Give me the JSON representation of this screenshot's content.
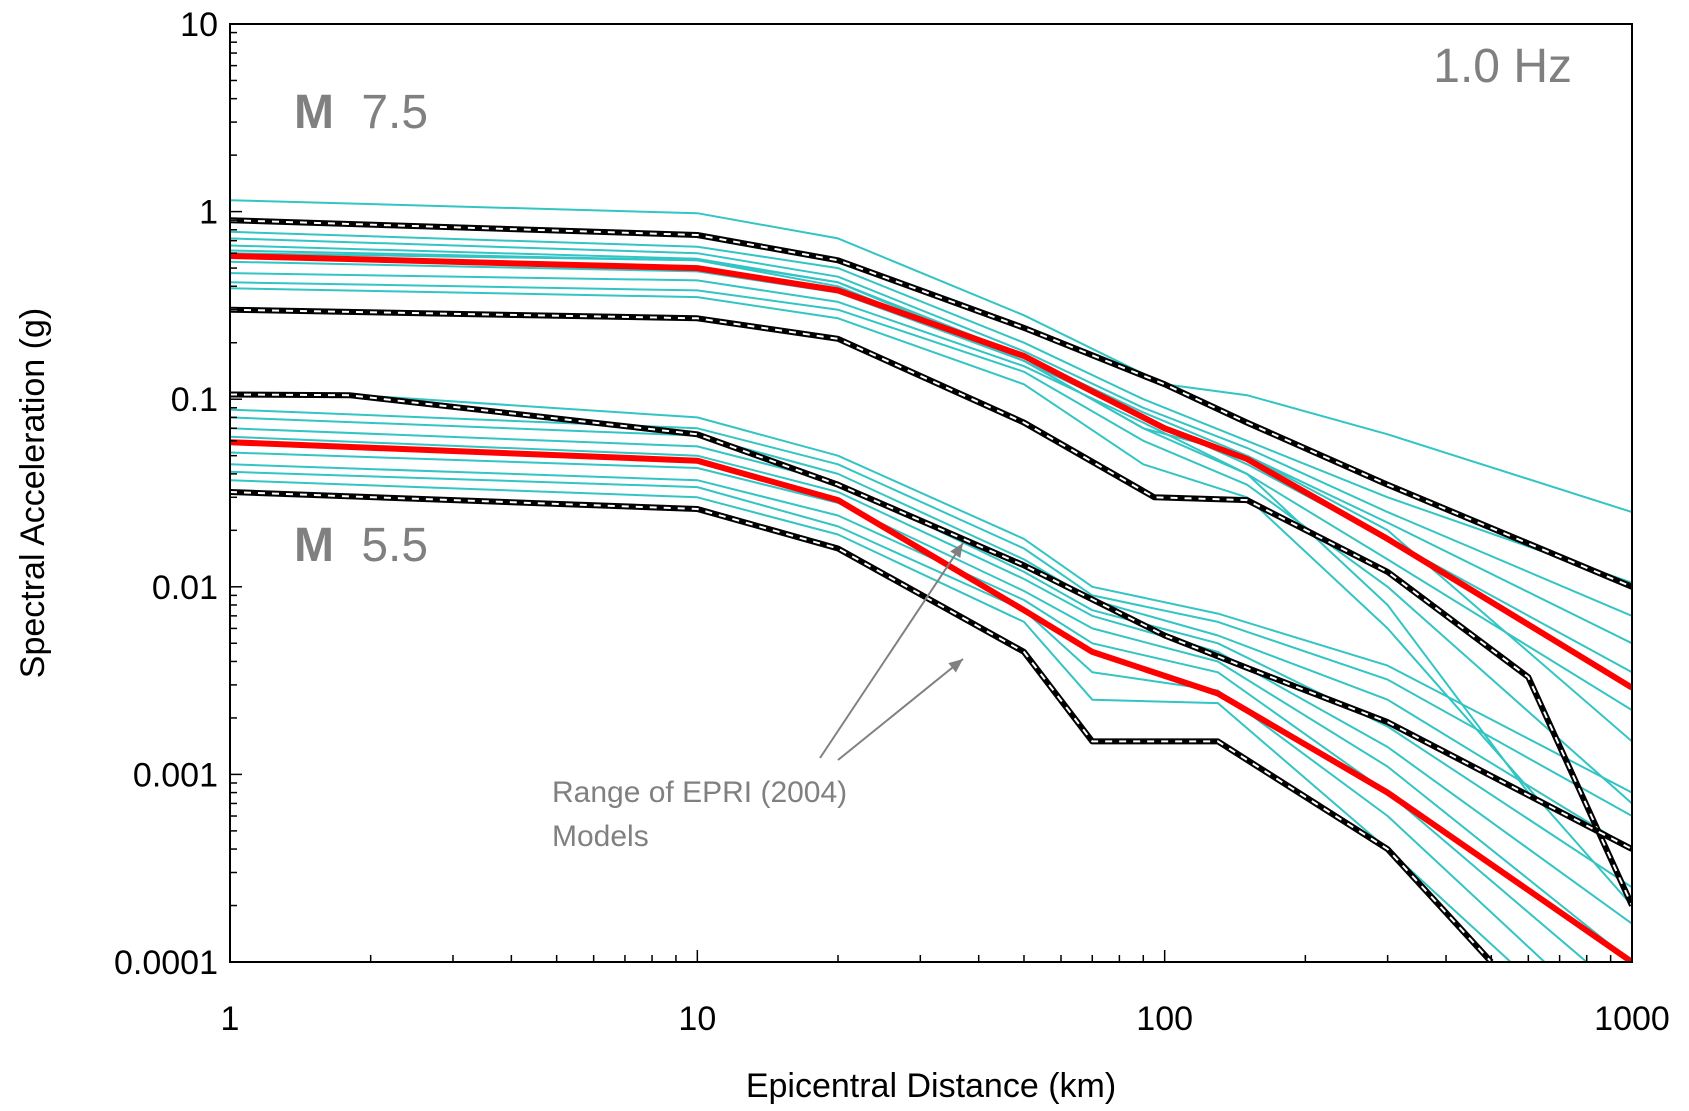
{
  "chart_data": {
    "type": "line",
    "title": "",
    "xlabel": "Epicentral Distance (km)",
    "ylabel": "Spectral Acceleration (g)",
    "xscale": "log",
    "yscale": "log",
    "xlim": [
      1,
      1000
    ],
    "ylim": [
      0.0001,
      10
    ],
    "grid": false,
    "legend": "none",
    "x_tick_labels": [
      "1",
      "10",
      "100",
      "1000"
    ],
    "y_tick_labels": [
      "10",
      "1",
      "0.1",
      "0.01",
      "0.001",
      "0.0001"
    ],
    "annotations": {
      "frequency": "1.0 Hz",
      "mag_high_letter": "M",
      "mag_high_value": "7.5",
      "mag_low_letter": "M",
      "mag_low_value": "5.5",
      "range_note_line1": "Range of EPRI (2004)",
      "range_note_line2": "Models"
    },
    "colors": {
      "model": "#33c4c4",
      "median": "#ff0000",
      "bound": "#000000",
      "annotation": "#808080"
    },
    "series": [
      {
        "group": "7.5",
        "kind": "model",
        "x": [
          1,
          10,
          20,
          50,
          100,
          150,
          300,
          1000
        ],
        "y": [
          1.15,
          0.98,
          0.72,
          0.28,
          0.12,
          0.105,
          0.065,
          0.025
        ]
      },
      {
        "group": "7.5",
        "kind": "model",
        "x": [
          1,
          10,
          20,
          50,
          90,
          150,
          300,
          1000
        ],
        "y": [
          0.78,
          0.65,
          0.5,
          0.2,
          0.1,
          0.06,
          0.03,
          0.0105
        ]
      },
      {
        "group": "7.5",
        "kind": "model",
        "x": [
          1,
          10,
          20,
          50,
          90,
          150,
          300,
          1000
        ],
        "y": [
          0.72,
          0.6,
          0.45,
          0.18,
          0.09,
          0.055,
          0.025,
          0.007
        ]
      },
      {
        "group": "7.5",
        "kind": "model",
        "x": [
          1,
          10,
          20,
          50,
          90,
          150,
          300,
          1000
        ],
        "y": [
          0.66,
          0.56,
          0.42,
          0.17,
          0.085,
          0.05,
          0.022,
          0.005
        ]
      },
      {
        "group": "7.5",
        "kind": "model",
        "x": [
          1,
          10,
          20,
          50,
          90,
          150,
          300,
          1000
        ],
        "y": [
          0.54,
          0.48,
          0.37,
          0.16,
          0.08,
          0.045,
          0.018,
          0.0035
        ]
      },
      {
        "group": "7.5",
        "kind": "model",
        "x": [
          1,
          10,
          20,
          50,
          90,
          150,
          300,
          1000
        ],
        "y": [
          0.47,
          0.43,
          0.33,
          0.15,
          0.075,
          0.04,
          0.014,
          0.0022
        ]
      },
      {
        "group": "7.5",
        "kind": "model",
        "x": [
          1,
          10,
          20,
          50,
          90,
          150,
          300,
          1000
        ],
        "y": [
          0.42,
          0.38,
          0.3,
          0.14,
          0.06,
          0.035,
          0.01,
          0.0007
        ]
      },
      {
        "group": "7.5",
        "kind": "model",
        "x": [
          1,
          10,
          20,
          50,
          90,
          150,
          300,
          1000
        ],
        "y": [
          0.39,
          0.35,
          0.27,
          0.12,
          0.045,
          0.03,
          0.006,
          0.0002
        ]
      },
      {
        "group": "7.5",
        "kind": "model",
        "x": [
          1,
          10,
          20,
          50,
          90,
          150,
          300,
          600
        ],
        "y": [
          0.6,
          0.55,
          0.4,
          0.16,
          0.07,
          0.04,
          0.008,
          0.0008
        ]
      },
      {
        "group": "7.5",
        "kind": "model",
        "x": [
          1,
          10,
          20,
          50,
          90,
          150,
          300,
          1000
        ],
        "y": [
          0.62,
          0.55,
          0.42,
          0.16,
          0.07,
          0.05,
          0.02,
          0.0015
        ]
      },
      {
        "group": "7.5",
        "kind": "upper",
        "x": [
          1,
          10,
          20,
          50,
          100,
          150,
          300,
          1000
        ],
        "y": [
          0.9,
          0.75,
          0.55,
          0.24,
          0.12,
          0.075,
          0.035,
          0.01
        ]
      },
      {
        "group": "7.5",
        "kind": "median",
        "x": [
          1,
          10,
          20,
          50,
          70,
          100,
          150,
          300,
          1000
        ],
        "y": [
          0.58,
          0.5,
          0.38,
          0.17,
          0.11,
          0.07,
          0.048,
          0.018,
          0.0029
        ]
      },
      {
        "group": "7.5",
        "kind": "lower",
        "x": [
          1,
          10,
          20,
          50,
          95,
          150,
          300,
          600,
          1000
        ],
        "y": [
          0.3,
          0.27,
          0.21,
          0.075,
          0.03,
          0.029,
          0.012,
          0.0033,
          0.0002
        ]
      },
      {
        "group": "5.5",
        "kind": "model",
        "x": [
          1,
          10,
          20,
          50,
          70,
          130,
          300,
          1000
        ],
        "y": [
          0.088,
          0.07,
          0.045,
          0.016,
          0.009,
          0.0065,
          0.0032,
          0.0006
        ]
      },
      {
        "group": "5.5",
        "kind": "model",
        "x": [
          1,
          10,
          20,
          50,
          70,
          130,
          300,
          1000
        ],
        "y": [
          0.08,
          0.064,
          0.04,
          0.014,
          0.0085,
          0.0055,
          0.0025,
          0.0004
        ]
      },
      {
        "group": "5.5",
        "kind": "model",
        "x": [
          1,
          10,
          20,
          50,
          70,
          130,
          300,
          1000
        ],
        "y": [
          0.07,
          0.056,
          0.036,
          0.012,
          0.0075,
          0.005,
          0.0018,
          0.00025
        ]
      },
      {
        "group": "5.5",
        "kind": "model",
        "x": [
          1,
          10,
          20,
          50,
          70,
          130,
          300,
          1000
        ],
        "y": [
          0.063,
          0.05,
          0.032,
          0.011,
          0.007,
          0.0045,
          0.0014,
          0.00016
        ]
      },
      {
        "group": "5.5",
        "kind": "model",
        "x": [
          1,
          10,
          20,
          50,
          70,
          130,
          300,
          1000
        ],
        "y": [
          0.052,
          0.043,
          0.028,
          0.0095,
          0.006,
          0.004,
          0.0011,
          0.0001
        ]
      },
      {
        "group": "5.5",
        "kind": "model",
        "x": [
          1,
          10,
          20,
          50,
          70,
          130,
          300,
          800
        ],
        "y": [
          0.045,
          0.037,
          0.024,
          0.0085,
          0.005,
          0.0035,
          0.0008,
          0.0001
        ]
      },
      {
        "group": "5.5",
        "kind": "model",
        "x": [
          1,
          10,
          20,
          50,
          70,
          130,
          300,
          650
        ],
        "y": [
          0.041,
          0.034,
          0.021,
          0.0075,
          0.0035,
          0.0028,
          0.0006,
          0.0001
        ]
      },
      {
        "group": "5.5",
        "kind": "model",
        "x": [
          1,
          10,
          20,
          50,
          70,
          130,
          300,
          550
        ],
        "y": [
          0.037,
          0.03,
          0.019,
          0.0065,
          0.0025,
          0.0024,
          0.0004,
          0.0001
        ]
      },
      {
        "group": "5.5",
        "kind": "model",
        "x": [
          2,
          10,
          20,
          50,
          70,
          130,
          300,
          1000
        ],
        "y": [
          0.104,
          0.08,
          0.05,
          0.018,
          0.01,
          0.0072,
          0.0038,
          0.0008
        ]
      },
      {
        "group": "5.5",
        "kind": "upper",
        "x": [
          1,
          1.8,
          10,
          20,
          50,
          100,
          150,
          300,
          1000
        ],
        "y": [
          0.106,
          0.105,
          0.065,
          0.035,
          0.013,
          0.0055,
          0.0037,
          0.0019,
          0.0004
        ]
      },
      {
        "group": "5.5",
        "kind": "median",
        "x": [
          1,
          10,
          20,
          50,
          70,
          130,
          300,
          1000
        ],
        "y": [
          0.059,
          0.047,
          0.029,
          0.0075,
          0.0045,
          0.0027,
          0.0008,
          0.0001
        ]
      },
      {
        "group": "5.5",
        "kind": "lower",
        "x": [
          1,
          10,
          20,
          50,
          70,
          130,
          300,
          500
        ],
        "y": [
          0.032,
          0.026,
          0.016,
          0.0045,
          0.0015,
          0.0015,
          0.0004,
          0.0001
        ]
      }
    ]
  }
}
